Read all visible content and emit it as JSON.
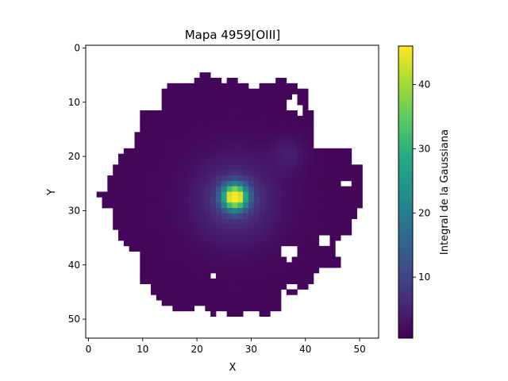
{
  "chart_data": {
    "type": "heatmap",
    "title": "Mapa 4959[OIII]",
    "xlabel": "X",
    "ylabel": "Y",
    "colorbar_label": "Integral de la Gaussiana",
    "colormap": "viridis",
    "x_range": [
      -0.5,
      53.5
    ],
    "y_range": [
      -0.5,
      53.5
    ],
    "y_inverted": true,
    "x_ticks": [
      0,
      10,
      20,
      30,
      40,
      50
    ],
    "y_ticks": [
      0,
      10,
      20,
      30,
      40,
      50
    ],
    "colorbar_range": [
      0.5,
      46
    ],
    "colorbar_ticks": [
      10,
      20,
      30,
      40
    ],
    "components": [
      {
        "name": "nucleus",
        "x": 27,
        "y": 27.5,
        "peak": 45,
        "sigma": 1.6
      },
      {
        "name": "halo",
        "x": 27,
        "y": 28,
        "peak": 7,
        "sigma": 5.5
      },
      {
        "name": "knot",
        "x": 37,
        "y": 19.5,
        "peak": 3,
        "sigma": 2.2
      },
      {
        "name": "background",
        "value": 1.2
      }
    ],
    "footprint_rows": [
      {
        "y": 5,
        "x": [
          [
            21,
            22
          ]
        ]
      },
      {
        "y": 6,
        "x": [
          [
            20,
            24
          ],
          [
            26,
            27
          ],
          [
            35,
            36
          ]
        ]
      },
      {
        "y": 7,
        "x": [
          [
            15,
            29
          ],
          [
            32,
            38
          ]
        ]
      },
      {
        "y": 8,
        "x": [
          [
            14,
            30
          ],
          [
            31,
            40
          ]
        ]
      },
      {
        "y": 9,
        "x": [
          [
            14,
            37
          ],
          [
            39,
            40
          ]
        ]
      },
      {
        "y": 10,
        "x": [
          [
            14,
            36
          ],
          [
            39,
            40
          ]
        ]
      },
      {
        "y": 11,
        "x": [
          [
            14,
            36
          ],
          [
            40,
            40
          ]
        ]
      },
      {
        "y": 12,
        "x": [
          [
            10,
            38
          ],
          [
            40,
            41
          ]
        ]
      },
      {
        "y": 13,
        "x": [
          [
            10,
            41
          ]
        ]
      },
      {
        "y": 14,
        "x": [
          [
            10,
            41
          ]
        ]
      },
      {
        "y": 15,
        "x": [
          [
            10,
            41
          ]
        ]
      },
      {
        "y": 16,
        "x": [
          [
            9,
            41
          ]
        ]
      },
      {
        "y": 17,
        "x": [
          [
            9,
            41
          ]
        ]
      },
      {
        "y": 18,
        "x": [
          [
            9,
            41
          ]
        ]
      },
      {
        "y": 19,
        "x": [
          [
            7,
            48
          ]
        ]
      },
      {
        "y": 20,
        "x": [
          [
            6,
            48
          ]
        ]
      },
      {
        "y": 21,
        "x": [
          [
            6,
            48
          ]
        ]
      },
      {
        "y": 22,
        "x": [
          [
            5,
            50
          ]
        ]
      },
      {
        "y": 23,
        "x": [
          [
            5,
            50
          ]
        ]
      },
      {
        "y": 24,
        "x": [
          [
            4,
            50
          ]
        ]
      },
      {
        "y": 25,
        "x": [
          [
            4,
            46
          ],
          [
            49,
            50
          ]
        ]
      },
      {
        "y": 26,
        "x": [
          [
            4,
            50
          ]
        ]
      },
      {
        "y": 27,
        "x": [
          [
            2,
            50
          ]
        ]
      },
      {
        "y": 28,
        "x": [
          [
            3,
            50
          ]
        ]
      },
      {
        "y": 29,
        "x": [
          [
            3,
            50
          ]
        ]
      },
      {
        "y": 30,
        "x": [
          [
            5,
            49
          ]
        ]
      },
      {
        "y": 31,
        "x": [
          [
            5,
            49
          ]
        ]
      },
      {
        "y": 32,
        "x": [
          [
            5,
            48
          ]
        ]
      },
      {
        "y": 33,
        "x": [
          [
            5,
            48
          ]
        ]
      },
      {
        "y": 34,
        "x": [
          [
            6,
            48
          ]
        ]
      },
      {
        "y": 35,
        "x": [
          [
            6,
            42
          ],
          [
            45,
            46
          ]
        ]
      },
      {
        "y": 36,
        "x": [
          [
            7,
            42
          ],
          [
            45,
            45
          ]
        ]
      },
      {
        "y": 37,
        "x": [
          [
            8,
            35
          ],
          [
            39,
            45
          ]
        ]
      },
      {
        "y": 38,
        "x": [
          [
            10,
            35
          ],
          [
            39,
            45
          ]
        ]
      },
      {
        "y": 39,
        "x": [
          [
            10,
            36
          ],
          [
            38,
            46
          ]
        ]
      },
      {
        "y": 40,
        "x": [
          [
            10,
            37
          ],
          [
            38,
            46
          ]
        ]
      },
      {
        "y": 41,
        "x": [
          [
            10,
            42
          ]
        ]
      },
      {
        "y": 42,
        "x": [
          [
            10,
            22
          ],
          [
            24,
            41
          ]
        ]
      },
      {
        "y": 43,
        "x": [
          [
            10,
            41
          ]
        ]
      },
      {
        "y": 44,
        "x": [
          [
            12,
            36
          ],
          [
            39,
            40
          ]
        ]
      },
      {
        "y": 45,
        "x": [
          [
            12,
            35
          ],
          [
            37,
            38
          ]
        ]
      },
      {
        "y": 46,
        "x": [
          [
            13,
            35
          ]
        ]
      },
      {
        "y": 47,
        "x": [
          [
            14,
            35
          ]
        ]
      },
      {
        "y": 48,
        "x": [
          [
            16,
            19
          ],
          [
            22,
            35
          ]
        ]
      },
      {
        "y": 49,
        "x": [
          [
            23,
            23
          ],
          [
            26,
            28
          ],
          [
            32,
            33
          ]
        ]
      }
    ]
  }
}
